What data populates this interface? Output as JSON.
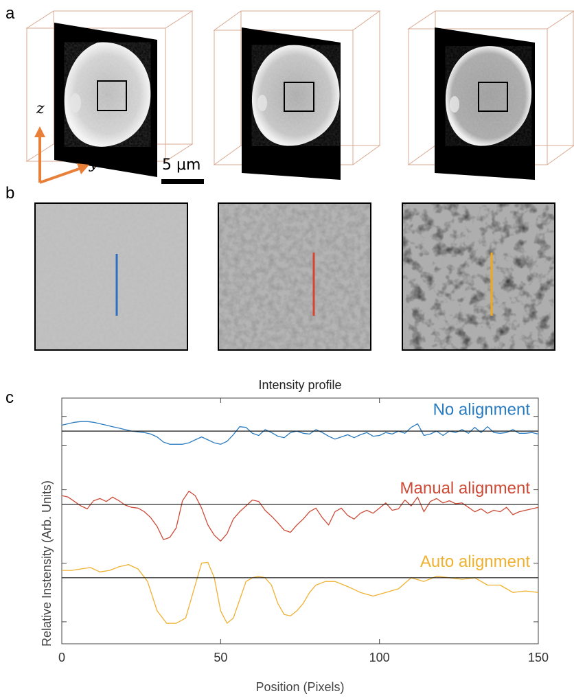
{
  "panel_a": {
    "letter": "a",
    "axis_z": "z",
    "axis_y": "y",
    "scale_bar_label": "5 μm",
    "arrow_color": "#e8803a",
    "box_edge_color": "#d8a890"
  },
  "panel_b": {
    "letter": "b",
    "line_colors": [
      "#2f6fc0",
      "#d9442b",
      "#f0a81c"
    ]
  },
  "panel_c": {
    "letter": "c"
  },
  "chart_data": {
    "type": "line",
    "title": "Intensity profile",
    "xlabel": "Position (Pixels)",
    "ylabel": "Relative Instensity (Arb. Units)",
    "xlim": [
      0,
      150
    ],
    "xticks": [
      0,
      50,
      100,
      150
    ],
    "grid": false,
    "baselines": [
      1.0,
      0.0,
      -1.0
    ],
    "series": [
      {
        "name": "No alignment",
        "color": "#2b7bbf",
        "offset": 1.0,
        "x": [
          0,
          2,
          4,
          6,
          8,
          10,
          12,
          14,
          16,
          18,
          20,
          22,
          24,
          26,
          28,
          30,
          32,
          34,
          36,
          38,
          40,
          42,
          44,
          46,
          48,
          50,
          52,
          54,
          56,
          58,
          60,
          62,
          64,
          66,
          68,
          70,
          72,
          74,
          76,
          78,
          80,
          82,
          84,
          86,
          88,
          90,
          92,
          94,
          96,
          98,
          100,
          102,
          104,
          106,
          108,
          110,
          112,
          114,
          116,
          118,
          120,
          122,
          124,
          126,
          128,
          130,
          132,
          134,
          136,
          138,
          140,
          142,
          144,
          146,
          148,
          150
        ],
        "y": [
          1.08,
          1.1,
          1.12,
          1.13,
          1.13,
          1.12,
          1.1,
          1.08,
          1.06,
          1.04,
          1.02,
          1.0,
          0.99,
          0.98,
          0.96,
          0.92,
          0.85,
          0.82,
          0.82,
          0.82,
          0.84,
          0.88,
          0.92,
          0.88,
          0.84,
          0.82,
          0.86,
          0.95,
          1.06,
          1.05,
          0.97,
          0.94,
          1.02,
          0.98,
          0.93,
          0.91,
          0.98,
          1.0,
          0.97,
          0.96,
          1.02,
          0.98,
          0.93,
          0.89,
          0.92,
          0.95,
          0.91,
          0.95,
          0.98,
          0.93,
          0.94,
          0.98,
          0.96,
          1.0,
          0.97,
          1.05,
          1.1,
          0.94,
          0.96,
          1.0,
          0.94,
          1.0,
          0.98,
          1.02,
          0.97,
          1.05,
          0.98,
          1.06,
          0.98,
          0.97,
          0.98,
          1.02,
          0.97,
          0.97,
          0.98,
          0.96
        ]
      },
      {
        "name": "Manual alignment",
        "color": "#cd4a36",
        "offset": 0.0,
        "x": [
          0,
          2,
          4,
          6,
          8,
          10,
          12,
          14,
          16,
          18,
          20,
          22,
          24,
          26,
          28,
          30,
          32,
          34,
          36,
          38,
          40,
          42,
          44,
          46,
          48,
          50,
          52,
          54,
          56,
          58,
          60,
          62,
          64,
          66,
          68,
          70,
          72,
          74,
          76,
          78,
          80,
          82,
          84,
          86,
          88,
          90,
          92,
          94,
          96,
          98,
          100,
          102,
          104,
          106,
          108,
          110,
          112,
          114,
          116,
          118,
          120,
          122,
          124,
          126,
          128,
          130,
          132,
          134,
          136,
          138,
          140,
          142,
          144,
          146,
          148,
          150
        ],
        "y": [
          0.12,
          0.1,
          0.04,
          -0.02,
          -0.06,
          0.05,
          0.08,
          0.04,
          0.1,
          0.05,
          -0.01,
          -0.04,
          -0.05,
          -0.1,
          -0.18,
          -0.3,
          -0.48,
          -0.45,
          -0.32,
          0.05,
          0.18,
          0.12,
          -0.05,
          -0.28,
          -0.42,
          -0.5,
          -0.4,
          -0.2,
          -0.1,
          -0.02,
          0.06,
          0.04,
          -0.08,
          -0.16,
          -0.25,
          -0.35,
          -0.38,
          -0.28,
          -0.2,
          -0.1,
          -0.05,
          -0.18,
          -0.28,
          -0.1,
          -0.05,
          -0.15,
          -0.2,
          -0.12,
          -0.08,
          -0.12,
          -0.05,
          0.02,
          -0.08,
          -0.06,
          0.06,
          -0.02,
          0.1,
          -0.1,
          0.04,
          0.08,
          0.02,
          0.05,
          0.01,
          0.02,
          -0.04,
          -0.1,
          -0.06,
          -0.12,
          -0.08,
          -0.1,
          -0.04,
          -0.14,
          -0.1,
          -0.08,
          -0.06,
          -0.04
        ]
      },
      {
        "name": "Auto alignment",
        "color": "#f0b030",
        "offset": -1.0,
        "x": [
          0,
          3,
          6,
          9,
          12,
          15,
          18,
          21,
          24,
          27,
          30,
          33,
          36,
          39,
          42,
          44,
          46,
          48,
          50,
          52,
          54,
          56,
          58,
          60,
          62,
          64,
          66,
          68,
          70,
          72,
          74,
          76,
          78,
          80,
          83,
          86,
          90,
          94,
          98,
          102,
          106,
          110,
          114,
          118,
          122,
          126,
          130,
          134,
          138,
          142,
          146,
          150
        ],
        "y": [
          -0.9,
          -0.9,
          -0.88,
          -0.86,
          -0.92,
          -0.9,
          -0.85,
          -0.82,
          -0.88,
          -1.05,
          -1.45,
          -1.62,
          -1.62,
          -1.55,
          -1.1,
          -0.8,
          -0.79,
          -1.0,
          -1.45,
          -1.62,
          -1.55,
          -1.3,
          -1.05,
          -1.0,
          -0.98,
          -1.0,
          -1.1,
          -1.35,
          -1.5,
          -1.52,
          -1.45,
          -1.35,
          -1.2,
          -1.1,
          -1.05,
          -1.05,
          -1.12,
          -1.2,
          -1.25,
          -1.2,
          -1.15,
          -1.0,
          -1.05,
          -0.98,
          -1.0,
          -1.02,
          -1.0,
          -1.1,
          -1.1,
          -1.2,
          -1.18,
          -1.2
        ]
      }
    ]
  }
}
